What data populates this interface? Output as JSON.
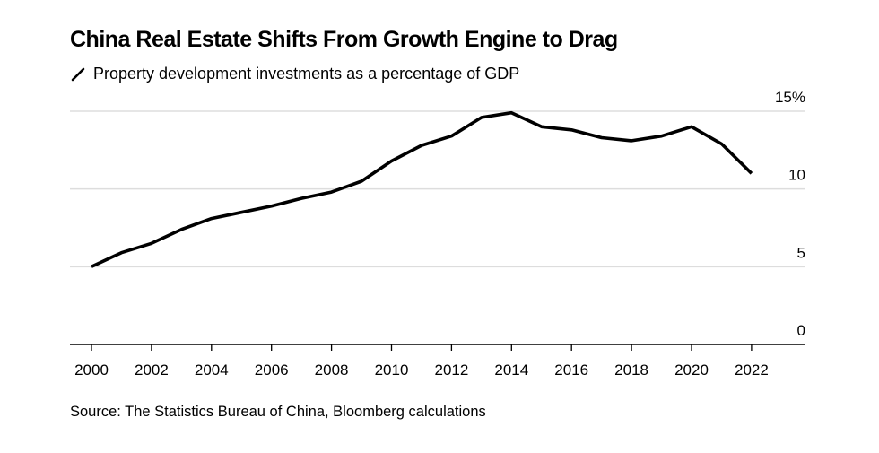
{
  "chart_data": {
    "type": "line",
    "title": "China Real Estate Shifts From Growth Engine to Drag",
    "subtitle": "Property development investments as a percentage of GDP",
    "source": "Source: The Statistics Bureau of China, Bloomberg calculations",
    "xlabel": "",
    "ylabel": "",
    "x": [
      2000,
      2001,
      2002,
      2003,
      2004,
      2005,
      2006,
      2007,
      2008,
      2009,
      2010,
      2011,
      2012,
      2013,
      2014,
      2015,
      2016,
      2017,
      2018,
      2019,
      2020,
      2021,
      2022
    ],
    "series": [
      {
        "name": "Property development investments as a percentage of GDP",
        "color": "#000000",
        "values": [
          5.0,
          5.9,
          6.5,
          7.4,
          8.1,
          8.5,
          8.9,
          9.4,
          9.8,
          10.5,
          11.8,
          12.8,
          13.4,
          14.6,
          14.9,
          14.0,
          13.8,
          13.3,
          13.1,
          13.4,
          14.0,
          12.9,
          11.0
        ]
      }
    ],
    "xlim": [
      2000,
      2023.8
    ],
    "ylim": [
      0,
      15
    ],
    "x_ticks": [
      "2000",
      "2002",
      "2004",
      "2006",
      "2008",
      "2010",
      "2012",
      "2014",
      "2016",
      "2018",
      "2020",
      "2022"
    ],
    "y_ticks": [
      "0",
      "5",
      "10",
      "15%"
    ],
    "y_tick_values": [
      0,
      5,
      10,
      15
    ],
    "grid": true,
    "legend": "top-left",
    "colors": {
      "line": "#000000",
      "grid": "#dddddd",
      "axis": "#000000"
    }
  }
}
